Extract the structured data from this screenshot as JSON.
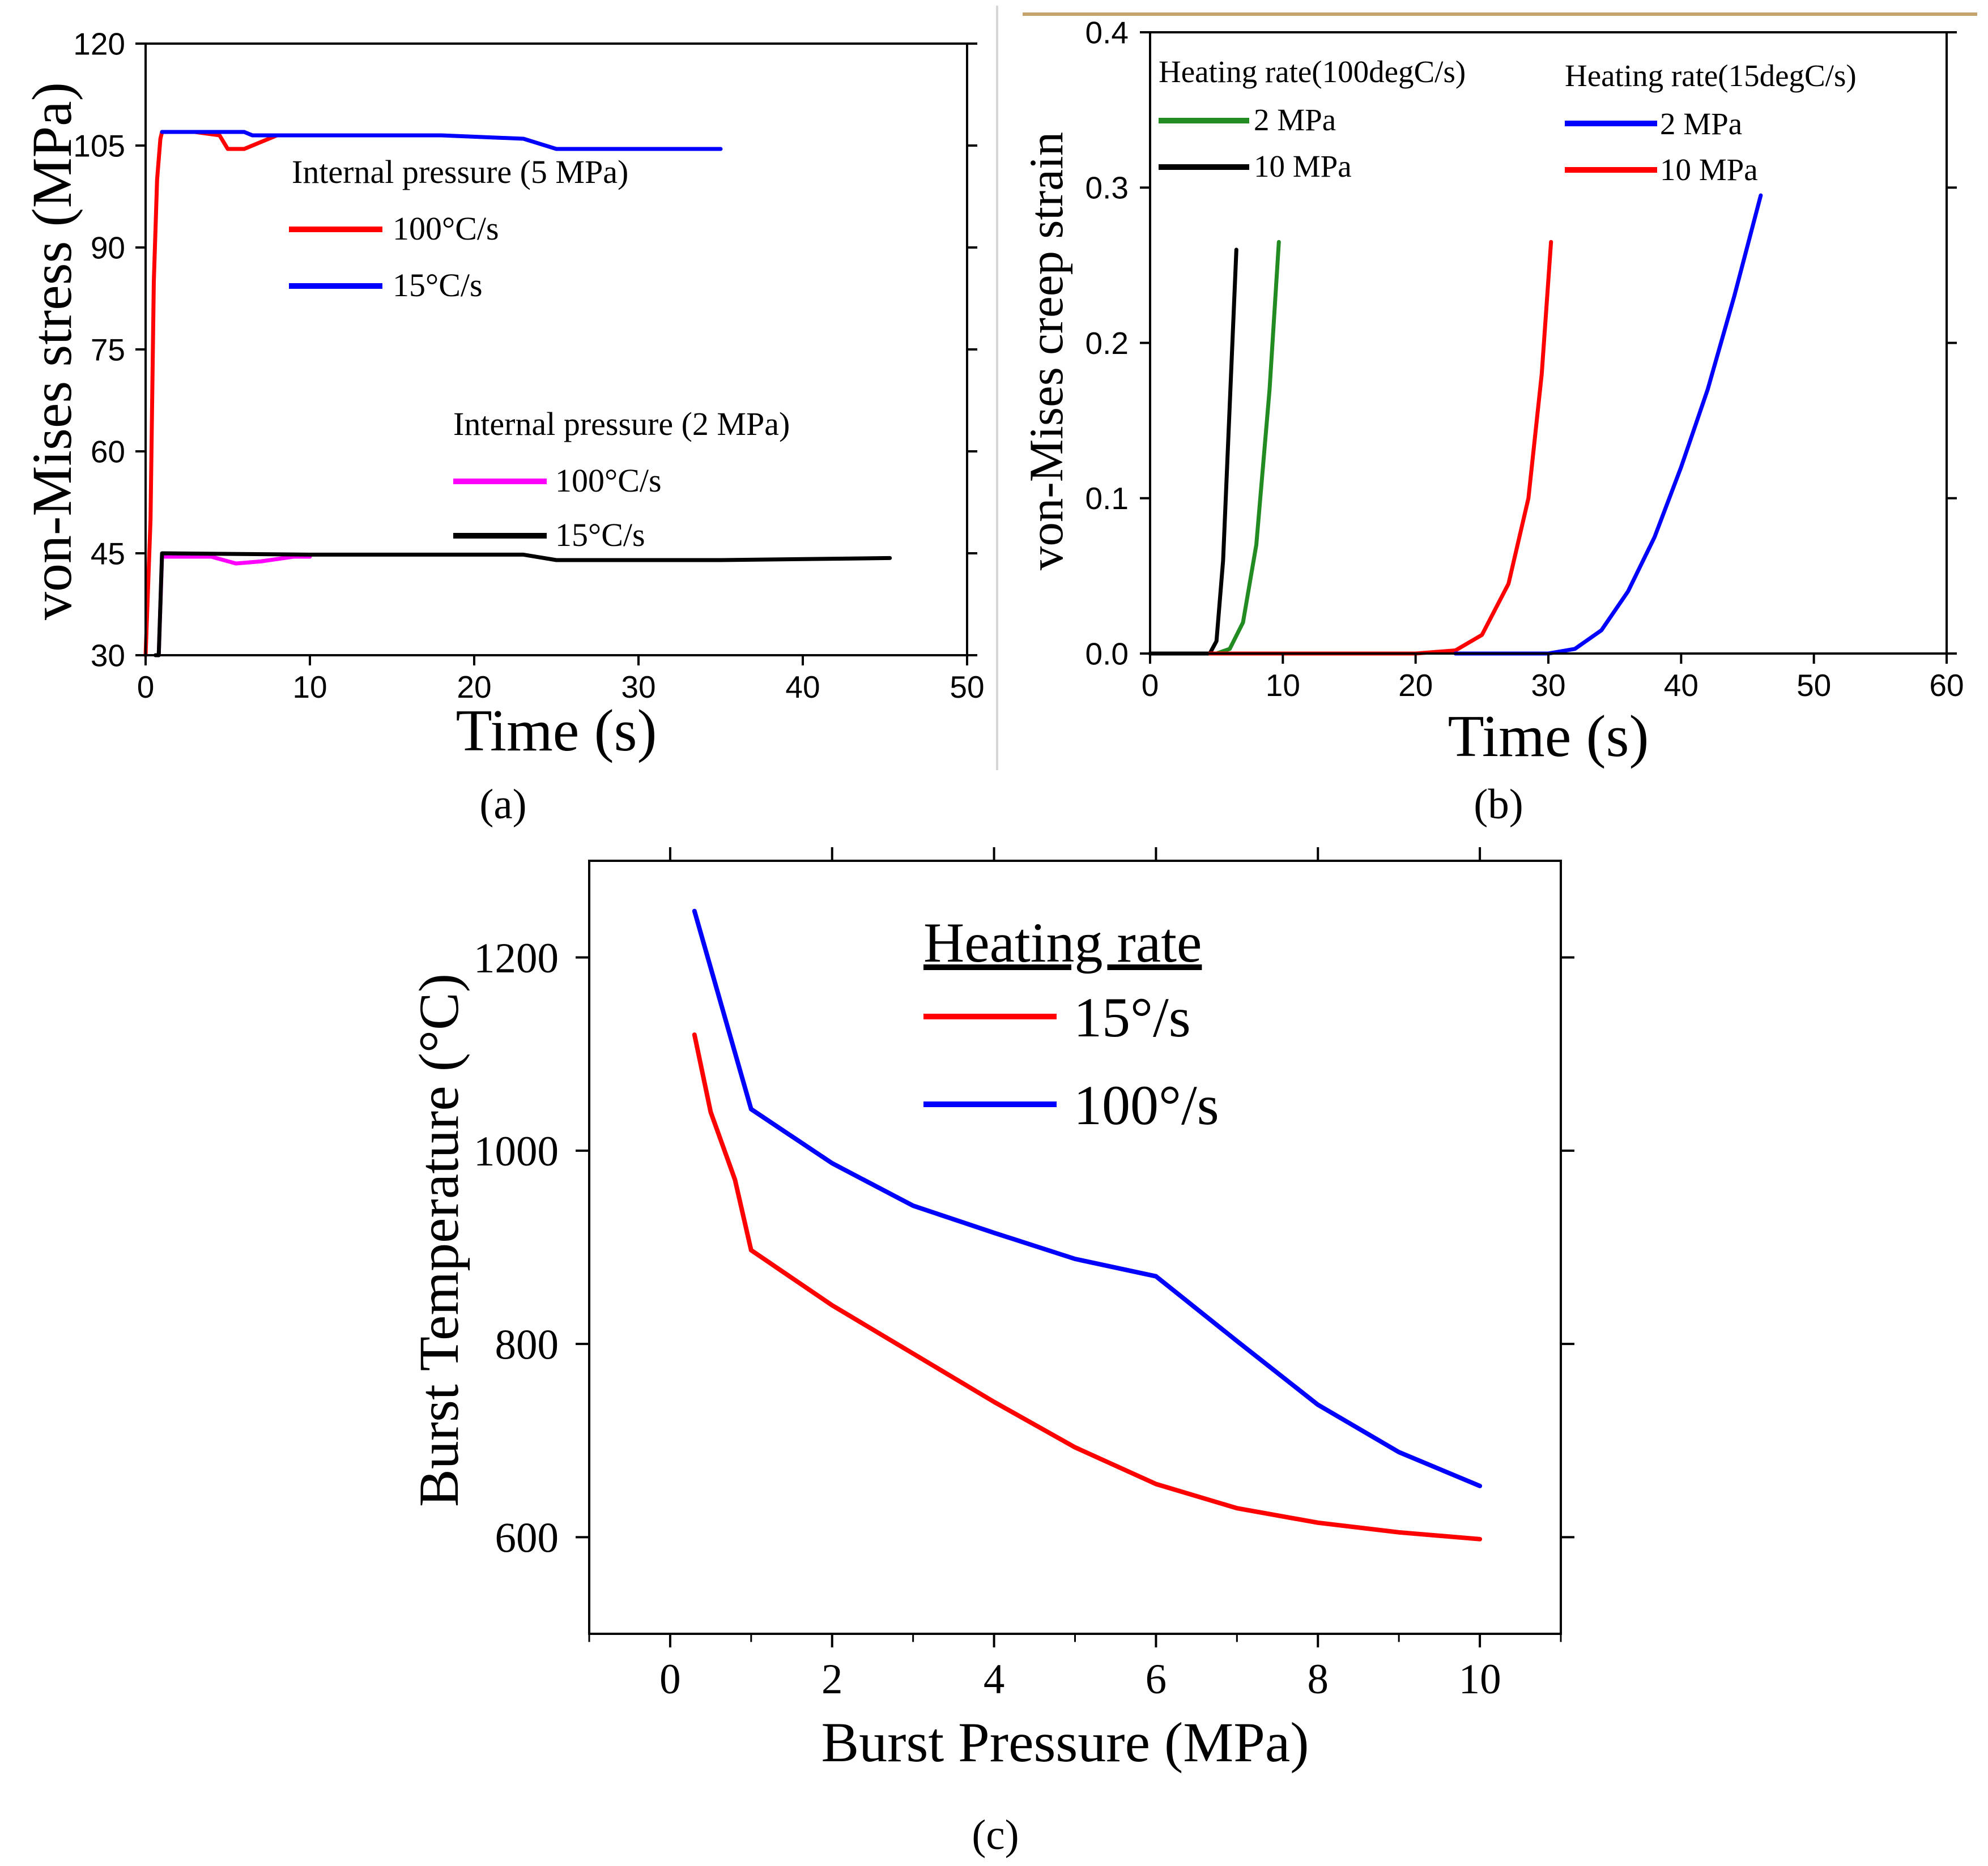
{
  "chart_data": [
    {
      "panel": "a",
      "caption": "(a)",
      "type": "line",
      "xlabel": "Time (s)",
      "ylabel": "von-Mises stress (MPa)",
      "xlim": [
        0,
        50
      ],
      "ylim": [
        30,
        120
      ],
      "xticks": [
        0,
        10,
        20,
        30,
        40,
        50
      ],
      "yticks": [
        30,
        45,
        60,
        75,
        90,
        105,
        120
      ],
      "grid": false,
      "legend_groups": [
        {
          "title": "Internal pressure (5 MPa)",
          "entries": [
            {
              "label": "100°C/s",
              "color": "#ff0000"
            },
            {
              "label": "15°C/s",
              "color": "#0000ff"
            }
          ]
        },
        {
          "title": "Internal pressure (2 MPa)",
          "entries": [
            {
              "label": "100°C/s",
              "color": "#ff00ff"
            },
            {
              "label": "15°C/s",
              "color": "#000000"
            }
          ]
        }
      ],
      "series": [
        {
          "name": "5 MPa, 100°C/s",
          "color": "#ff0000",
          "x": [
            0,
            0.3,
            0.5,
            0.7,
            0.9,
            1.0,
            3,
            4.5,
            5.0,
            6.0,
            8.0
          ],
          "y": [
            30,
            50,
            85,
            100,
            106,
            107,
            107,
            106.5,
            104.5,
            104.5,
            106.5
          ]
        },
        {
          "name": "5 MPa, 15°C/s",
          "color": "#0000ff",
          "x": [
            1.0,
            6.0,
            6.5,
            18,
            23,
            25,
            30,
            35
          ],
          "y": [
            107,
            107,
            106.5,
            106.5,
            106,
            104.5,
            104.5,
            104.5
          ]
        },
        {
          "name": "2 MPa, 100°C/s",
          "color": "#ff00ff",
          "x": [
            0.8,
            1.0,
            4.0,
            5.5,
            7.0,
            9.0,
            10.0
          ],
          "y": [
            30,
            44.5,
            44.5,
            43.5,
            43.8,
            44.5,
            44.5
          ]
        },
        {
          "name": "2 MPa, 15°C/s",
          "color": "#000000",
          "x": [
            0.6,
            0.8,
            1.0,
            10,
            23,
            25,
            35,
            45.3
          ],
          "y": [
            30,
            30,
            45,
            44.8,
            44.8,
            44,
            44,
            44.3
          ]
        }
      ]
    },
    {
      "panel": "b",
      "caption": "(b)",
      "type": "line",
      "xlabel": "Time (s)",
      "ylabel": "von-Mises creep strain",
      "xlim": [
        0,
        60
      ],
      "ylim": [
        0.0,
        0.4
      ],
      "xticks": [
        0,
        10,
        20,
        30,
        40,
        50,
        60
      ],
      "yticks": [
        0.0,
        0.1,
        0.2,
        0.3,
        0.4
      ],
      "grid": false,
      "legend_groups": [
        {
          "title": "Heating rate(100degC/s)",
          "entries": [
            {
              "label": "2 MPa",
              "color": "#228b22"
            },
            {
              "label": "10 MPa",
              "color": "#000000"
            }
          ]
        },
        {
          "title": "Heating rate(15degC/s)",
          "entries": [
            {
              "label": "2 MPa",
              "color": "#0000ff"
            },
            {
              "label": "10 MPa",
              "color": "#ff0000"
            }
          ]
        }
      ],
      "series": [
        {
          "name": "100degC/s, 10 MPa",
          "color": "#000000",
          "x": [
            0,
            4.5,
            5.0,
            5.5,
            6.0,
            6.5
          ],
          "y": [
            0,
            0,
            0.008,
            0.06,
            0.16,
            0.26
          ]
        },
        {
          "name": "100degC/s, 2 MPa",
          "color": "#228b22",
          "x": [
            5.0,
            6.0,
            7.0,
            8.0,
            9.0,
            9.7
          ],
          "y": [
            0,
            0.003,
            0.02,
            0.07,
            0.17,
            0.265
          ]
        },
        {
          "name": "15degC/s, 10 MPa",
          "color": "#ff0000",
          "x": [
            4.5,
            20,
            23,
            25,
            27,
            28.5,
            29.5,
            30.2
          ],
          "y": [
            0,
            0,
            0.002,
            0.012,
            0.045,
            0.1,
            0.18,
            0.265
          ]
        },
        {
          "name": "15degC/s, 2 MPa",
          "color": "#0000ff",
          "x": [
            23,
            30,
            32,
            34,
            36,
            38,
            40,
            42,
            44,
            46
          ],
          "y": [
            0,
            0,
            0.003,
            0.015,
            0.04,
            0.075,
            0.12,
            0.17,
            0.23,
            0.295
          ]
        }
      ]
    },
    {
      "panel": "c",
      "caption": "(c)",
      "type": "line",
      "xlabel": "Burst Pressure (MPa)",
      "ylabel": "Burst Temperature (°C)",
      "xlim": [
        -1,
        11
      ],
      "ylim": [
        500,
        1300
      ],
      "xticks": [
        0,
        2,
        4,
        6,
        8,
        10
      ],
      "yticks": [
        600,
        800,
        1000,
        1200
      ],
      "grid": false,
      "legend_title": "Heating rate",
      "series": [
        {
          "name": "15°/s",
          "color": "#ff0000",
          "x": [
            0.3,
            0.5,
            0.8,
            1,
            2,
            3,
            4,
            5,
            6,
            7,
            8,
            9,
            10
          ],
          "y": [
            1120,
            1040,
            970,
            897,
            840,
            790,
            740,
            693,
            655,
            630,
            615,
            605,
            598
          ]
        },
        {
          "name": "100°/s",
          "color": "#0000ff",
          "x": [
            0.3,
            1,
            2,
            3,
            4,
            5,
            6,
            7,
            8,
            9,
            10
          ],
          "y": [
            1248,
            1043,
            987,
            943,
            915,
            888,
            870,
            803,
            737,
            688,
            653
          ]
        }
      ]
    }
  ]
}
